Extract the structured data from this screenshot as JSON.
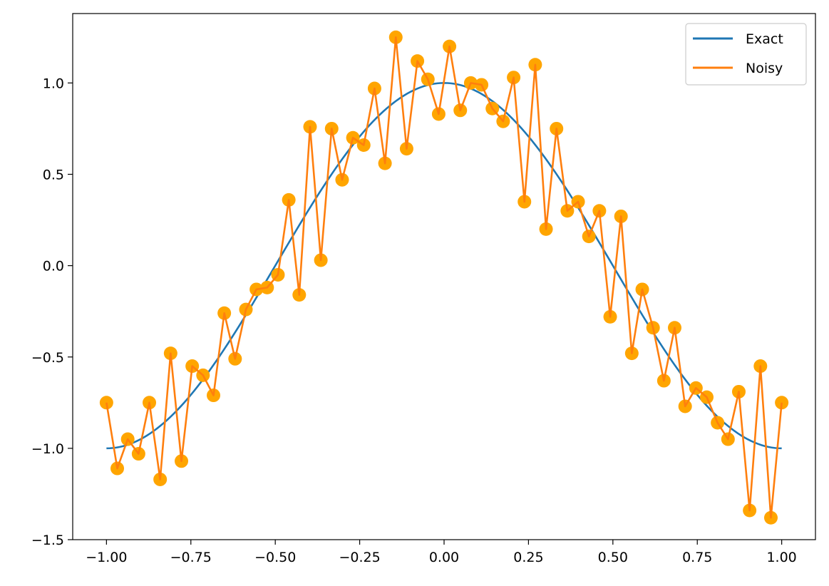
{
  "chart_data": {
    "type": "line",
    "title": "",
    "xlabel": "",
    "ylabel": "",
    "xlim": [
      -1.1,
      1.1
    ],
    "ylim": [
      -1.5,
      1.38
    ],
    "x_ticks": [
      -1.0,
      -0.75,
      -0.5,
      -0.25,
      0.0,
      0.25,
      0.5,
      0.75,
      1.0
    ],
    "x_tick_labels": [
      "−1.00",
      "−0.75",
      "−0.50",
      "−0.25",
      "0.00",
      "0.25",
      "0.50",
      "0.75",
      "1.00"
    ],
    "y_ticks": [
      -1.5,
      -1.0,
      -0.5,
      0.0,
      0.5,
      1.0
    ],
    "y_tick_labels": [
      "−1.5",
      "−1.0",
      "−0.5",
      "0.0",
      "0.5",
      "1.0"
    ],
    "grid": false,
    "legend_position": "top-right",
    "series": [
      {
        "name": "Exact",
        "color": "#1f77b4",
        "function": "cos(pi*x)",
        "x_range": [
          -1.0,
          1.0
        ]
      },
      {
        "name": "Noisy",
        "color": "#ff7f0e",
        "marker_color": "#ffa500",
        "x": [
          -1.0,
          -0.968,
          -0.937,
          -0.905,
          -0.873,
          -0.841,
          -0.81,
          -0.778,
          -0.746,
          -0.714,
          -0.683,
          -0.651,
          -0.619,
          -0.587,
          -0.556,
          -0.524,
          -0.492,
          -0.46,
          -0.429,
          -0.397,
          -0.365,
          -0.333,
          -0.302,
          -0.27,
          -0.238,
          -0.206,
          -0.175,
          -0.143,
          -0.111,
          -0.079,
          -0.048,
          -0.016,
          0.016,
          0.048,
          0.079,
          0.111,
          0.143,
          0.175,
          0.206,
          0.238,
          0.27,
          0.302,
          0.333,
          0.365,
          0.397,
          0.429,
          0.46,
          0.492,
          0.524,
          0.556,
          0.587,
          0.619,
          0.651,
          0.683,
          0.714,
          0.746,
          0.778,
          0.81,
          0.841,
          0.873,
          0.905,
          0.937,
          0.968,
          1.0
        ],
        "y": [
          -0.75,
          -1.11,
          -0.95,
          -1.03,
          -0.75,
          -1.17,
          -0.48,
          -1.07,
          -0.55,
          -0.6,
          -0.71,
          -0.26,
          -0.51,
          -0.24,
          -0.13,
          -0.12,
          -0.05,
          0.36,
          -0.16,
          0.76,
          0.03,
          0.75,
          0.47,
          0.7,
          0.66,
          0.97,
          0.56,
          1.25,
          0.64,
          1.12,
          1.02,
          0.83,
          1.2,
          0.85,
          1.0,
          0.99,
          0.86,
          0.79,
          1.03,
          0.35,
          1.1,
          0.2,
          0.75,
          0.3,
          0.35,
          0.16,
          0.3,
          -0.28,
          0.27,
          -0.48,
          -0.13,
          -0.34,
          -0.63,
          -0.34,
          -0.77,
          -0.67,
          -0.72,
          -0.86,
          -0.95,
          -0.69,
          -1.34,
          -0.55,
          -1.38,
          -0.75
        ]
      }
    ]
  }
}
